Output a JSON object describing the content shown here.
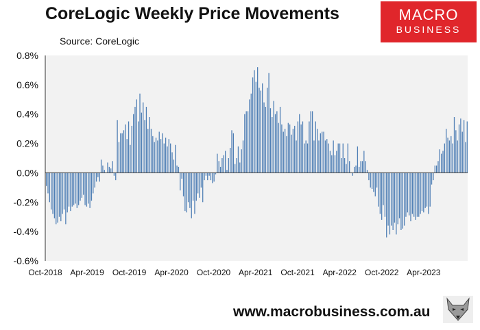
{
  "title": "CoreLogic Weekly Price Movements",
  "source": "Source: CoreLogic",
  "logo": {
    "line1": "MACRO",
    "line2": "BUSINESS"
  },
  "website": "www.macrobusiness.com.au",
  "colors": {
    "bar": "#4f7fb5",
    "plot_bg": "#f2f2f2",
    "logo_bg": "#e0262b"
  },
  "chart_data": {
    "type": "bar",
    "title": "CoreLogic Weekly Price Movements",
    "xlabel": "",
    "ylabel": "",
    "ylim": [
      -0.6,
      0.8
    ],
    "y_unit": "%",
    "y_ticks": [
      "0.8%",
      "0.6%",
      "0.4%",
      "0.2%",
      "0.0%",
      "-0.2%",
      "-0.4%",
      "-0.6%"
    ],
    "x_ticks": [
      "Oct-2018",
      "Apr-2019",
      "Oct-2019",
      "Apr-2020",
      "Oct-2020",
      "Apr-2021",
      "Oct-2021",
      "Apr-2022",
      "Oct-2022",
      "Apr-2023"
    ],
    "x_start": "Oct-2018",
    "grid": false,
    "series": [
      {
        "values": [
          -0.09,
          -0.14,
          -0.2,
          -0.25,
          -0.28,
          -0.31,
          -0.35,
          -0.34,
          -0.3,
          -0.33,
          -0.28,
          -0.25,
          -0.35,
          -0.27,
          -0.23,
          -0.26,
          -0.23,
          -0.22,
          -0.21,
          -0.24,
          -0.22,
          -0.19,
          -0.17,
          -0.15,
          -0.22,
          -0.23,
          -0.21,
          -0.24,
          -0.19,
          -0.14,
          -0.1,
          -0.06,
          -0.03,
          -0.06,
          0.09,
          0.05,
          0.02,
          0.0,
          0.07,
          0.04,
          0.03,
          0.08,
          -0.02,
          -0.05,
          0.36,
          0.21,
          0.27,
          0.27,
          0.29,
          0.33,
          0.23,
          0.35,
          0.19,
          0.32,
          0.4,
          0.45,
          0.5,
          0.35,
          0.54,
          0.41,
          0.48,
          0.36,
          0.45,
          0.3,
          0.38,
          0.3,
          0.25,
          0.21,
          0.24,
          0.22,
          0.28,
          0.23,
          0.27,
          0.2,
          0.24,
          0.18,
          0.23,
          0.2,
          0.14,
          0.09,
          0.19,
          0.05,
          0.04,
          -0.12,
          -0.04,
          -0.16,
          -0.26,
          -0.27,
          -0.2,
          -0.24,
          -0.31,
          -0.19,
          -0.28,
          -0.19,
          -0.14,
          -0.17,
          -0.1,
          -0.2,
          -0.05,
          -0.02,
          -0.05,
          -0.02,
          -0.05,
          -0.07,
          -0.06,
          -0.01,
          0.13,
          0.08,
          0.04,
          0.1,
          0.12,
          0.15,
          0.02,
          0.1,
          0.17,
          0.29,
          0.27,
          0.06,
          0.1,
          0.18,
          0.07,
          0.16,
          0.22,
          0.4,
          0.42,
          0.42,
          0.5,
          0.54,
          0.65,
          0.7,
          0.62,
          0.72,
          0.58,
          0.56,
          0.61,
          0.48,
          0.45,
          0.58,
          0.68,
          0.44,
          0.38,
          0.49,
          0.4,
          0.42,
          0.34,
          0.45,
          0.33,
          0.28,
          0.3,
          0.25,
          0.34,
          0.33,
          0.26,
          0.3,
          0.32,
          0.22,
          0.35,
          0.4,
          0.33,
          0.35,
          0.2,
          0.22,
          0.2,
          0.35,
          0.42,
          0.42,
          0.22,
          0.35,
          0.3,
          0.22,
          0.27,
          0.28,
          0.28,
          0.22,
          0.23,
          0.2,
          0.15,
          0.12,
          0.22,
          0.12,
          0.15,
          0.2,
          0.2,
          0.1,
          0.2,
          0.1,
          0.06,
          0.2,
          0.08,
          0.0,
          -0.02,
          0.04,
          0.05,
          0.18,
          0.04,
          0.08,
          0.08,
          0.15,
          0.08,
          0.02,
          -0.05,
          -0.1,
          -0.11,
          -0.13,
          -0.16,
          -0.1,
          -0.23,
          -0.28,
          -0.32,
          -0.22,
          -0.3,
          -0.44,
          -0.36,
          -0.42,
          -0.36,
          -0.39,
          -0.34,
          -0.42,
          -0.35,
          -0.31,
          -0.39,
          -0.38,
          -0.36,
          -0.3,
          -0.27,
          -0.29,
          -0.33,
          -0.28,
          -0.3,
          -0.32,
          -0.3,
          -0.3,
          -0.28,
          -0.26,
          -0.27,
          -0.24,
          -0.23,
          -0.28,
          -0.23,
          -0.08,
          -0.05,
          0.05,
          0.05,
          0.08,
          0.16,
          0.13,
          0.15,
          0.2,
          0.3,
          0.24,
          0.22,
          0.25,
          0.2,
          0.38,
          0.29,
          0.22,
          0.33,
          0.37,
          0.28,
          0.36,
          0.21,
          0.35
        ]
      }
    ]
  }
}
